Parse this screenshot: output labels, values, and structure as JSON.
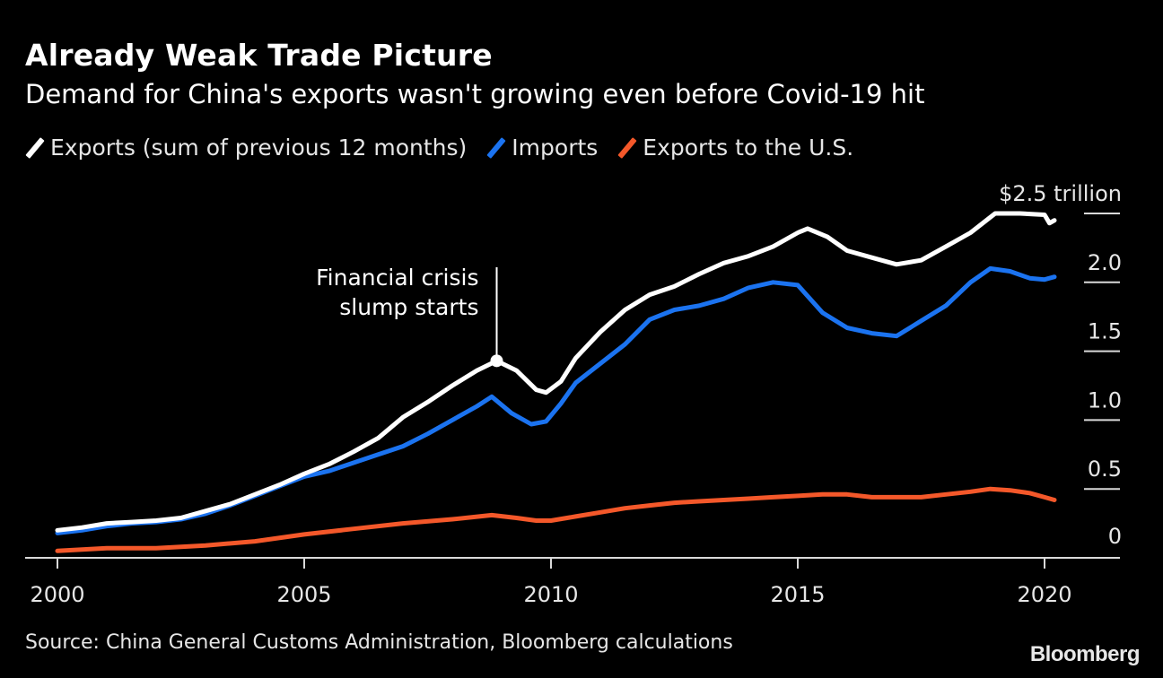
{
  "chart_data": {
    "type": "line",
    "title": "Already Weak Trade Picture",
    "subtitle": "Demand for China's exports wasn't growing even before Covid-19 hit",
    "xlabel": "",
    "ylabel": "$ trillion",
    "y_unit_label": "$2.5 trillion",
    "xlim": [
      2000,
      2021.5
    ],
    "ylim": [
      0,
      2.6
    ],
    "x_ticks": [
      2000,
      2005,
      2010,
      2015,
      2020
    ],
    "x_tick_labels": [
      "2000",
      "2005",
      "2010",
      "2015",
      "2020"
    ],
    "y_ticks": [
      0,
      0.5,
      1.0,
      1.5,
      2.0,
      2.5
    ],
    "y_tick_labels": [
      "0",
      "0.5",
      "1.0",
      "1.5",
      "2.0",
      "$2.5 trillion"
    ],
    "grid": false,
    "legend_position": "top-left",
    "series": [
      {
        "name": "Exports (sum of previous 12 months)",
        "color": "#ffffff",
        "x": [
          2000.0,
          2000.5,
          2001.0,
          2001.5,
          2002.0,
          2002.5,
          2003.0,
          2003.5,
          2004.0,
          2004.5,
          2005.0,
          2005.5,
          2006.0,
          2006.5,
          2007.0,
          2007.5,
          2008.0,
          2008.5,
          2008.9,
          2009.3,
          2009.7,
          2009.9,
          2010.2,
          2010.5,
          2011.0,
          2011.5,
          2012.0,
          2012.5,
          2013.0,
          2013.5,
          2014.0,
          2014.5,
          2015.0,
          2015.2,
          2015.6,
          2016.0,
          2016.5,
          2017.0,
          2017.5,
          2018.0,
          2018.5,
          2019.0,
          2019.5,
          2020.0,
          2020.1,
          2020.2
        ],
        "values": [
          0.2,
          0.22,
          0.25,
          0.26,
          0.27,
          0.29,
          0.34,
          0.39,
          0.46,
          0.53,
          0.61,
          0.68,
          0.77,
          0.87,
          1.02,
          1.13,
          1.25,
          1.36,
          1.43,
          1.36,
          1.22,
          1.2,
          1.28,
          1.45,
          1.64,
          1.8,
          1.91,
          1.97,
          2.06,
          2.14,
          2.19,
          2.26,
          2.36,
          2.39,
          2.33,
          2.23,
          2.18,
          2.13,
          2.16,
          2.26,
          2.36,
          2.5,
          2.5,
          2.49,
          2.43,
          2.45
        ]
      },
      {
        "name": "Imports",
        "color": "#1b73f0",
        "x": [
          2000.0,
          2000.5,
          2001.0,
          2001.5,
          2002.0,
          2002.5,
          2003.0,
          2003.5,
          2004.0,
          2004.5,
          2005.0,
          2005.5,
          2006.0,
          2006.5,
          2007.0,
          2007.5,
          2008.0,
          2008.5,
          2008.8,
          2009.2,
          2009.6,
          2009.9,
          2010.2,
          2010.5,
          2011.0,
          2011.5,
          2012.0,
          2012.5,
          2013.0,
          2013.5,
          2014.0,
          2014.5,
          2015.0,
          2015.5,
          2016.0,
          2016.5,
          2017.0,
          2017.5,
          2018.0,
          2018.5,
          2018.9,
          2019.3,
          2019.7,
          2020.0,
          2020.2
        ],
        "values": [
          0.18,
          0.2,
          0.23,
          0.25,
          0.26,
          0.28,
          0.32,
          0.38,
          0.45,
          0.52,
          0.59,
          0.63,
          0.69,
          0.75,
          0.81,
          0.9,
          1.0,
          1.1,
          1.17,
          1.05,
          0.97,
          0.99,
          1.12,
          1.27,
          1.41,
          1.55,
          1.73,
          1.8,
          1.83,
          1.88,
          1.96,
          2.0,
          1.98,
          1.78,
          1.67,
          1.63,
          1.61,
          1.72,
          1.83,
          2.0,
          2.1,
          2.08,
          2.03,
          2.02,
          2.04
        ]
      },
      {
        "name": "Exports to the U.S.",
        "color": "#f4582a",
        "x": [
          2000.0,
          2001.0,
          2002.0,
          2003.0,
          2004.0,
          2005.0,
          2006.0,
          2007.0,
          2008.0,
          2008.8,
          2009.3,
          2009.7,
          2010.0,
          2010.5,
          2011.0,
          2011.5,
          2012.0,
          2012.5,
          2013.0,
          2013.5,
          2014.0,
          2014.5,
          2015.0,
          2015.5,
          2016.0,
          2016.5,
          2017.0,
          2017.5,
          2018.0,
          2018.5,
          2018.9,
          2019.3,
          2019.7,
          2020.0,
          2020.2
        ],
        "values": [
          0.05,
          0.07,
          0.07,
          0.09,
          0.12,
          0.17,
          0.21,
          0.25,
          0.28,
          0.31,
          0.29,
          0.27,
          0.27,
          0.3,
          0.33,
          0.36,
          0.38,
          0.4,
          0.41,
          0.42,
          0.43,
          0.44,
          0.45,
          0.46,
          0.46,
          0.44,
          0.44,
          0.44,
          0.46,
          0.48,
          0.5,
          0.49,
          0.47,
          0.44,
          0.42
        ]
      }
    ],
    "annotations": [
      {
        "text_lines": [
          "Financial crisis",
          "slump starts"
        ],
        "x": 2008.9,
        "y": 1.43
      }
    ],
    "source": "Source: China General Customs Administration, Bloomberg calculations",
    "brand": "Bloomberg"
  }
}
